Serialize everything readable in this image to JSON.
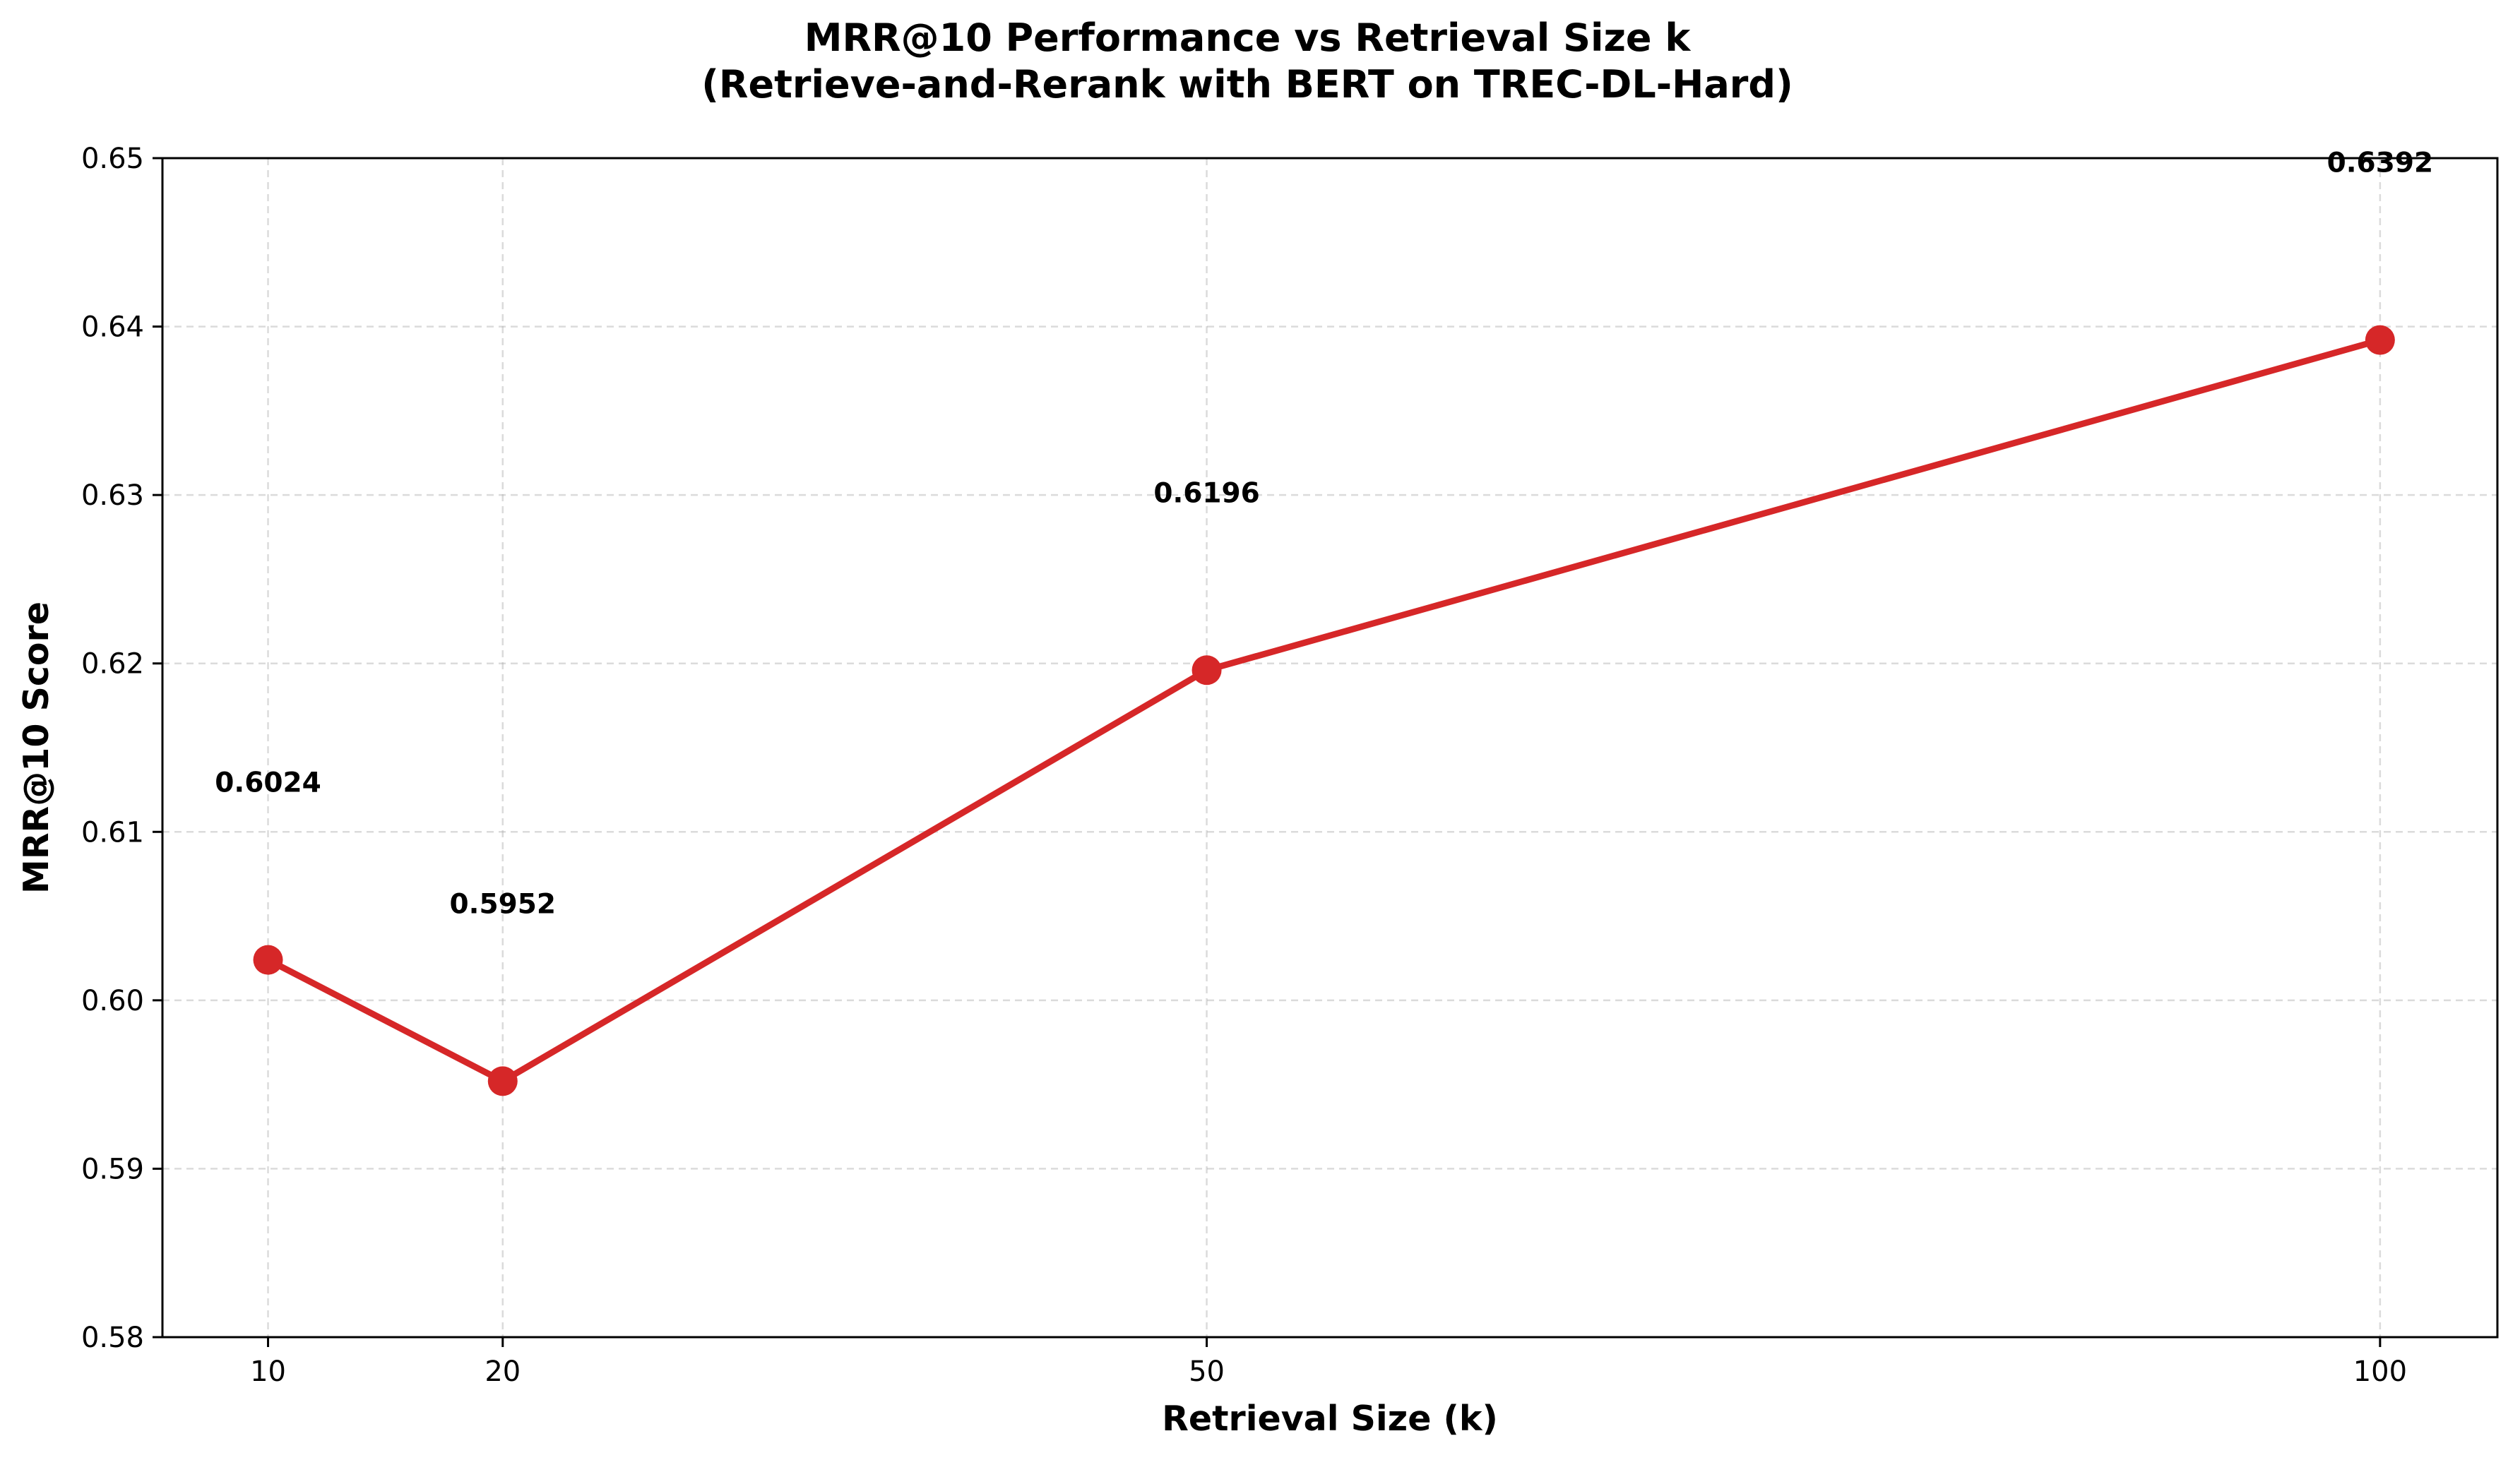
{
  "chart_data": {
    "type": "line",
    "title": "MRR@10 Performance vs Retrieval Size k",
    "subtitle": "(Retrieve-and-Rerank with BERT on TREC-DL-Hard)",
    "xlabel": "Retrieval Size (k)",
    "ylabel": "MRR@10 Score",
    "x": [
      10,
      20,
      50,
      100
    ],
    "x_tick_labels": [
      "10",
      "20",
      "50",
      "100"
    ],
    "xlim": [
      5.5,
      105
    ],
    "ylim": [
      0.58,
      0.65
    ],
    "y_ticks": [
      0.58,
      0.59,
      0.6,
      0.61,
      0.62,
      0.63,
      0.64,
      0.65
    ],
    "y_tick_labels": [
      "0.58",
      "0.59",
      "0.60",
      "0.61",
      "0.62",
      "0.63",
      "0.64",
      "0.65"
    ],
    "grid": true,
    "series": [
      {
        "values": [
          0.6024,
          0.5952,
          0.6196,
          0.6392
        ],
        "data_labels": [
          "0.6024",
          "0.5952",
          "0.6196",
          "0.6392"
        ],
        "color": "#d62728",
        "marker": "circle"
      }
    ]
  }
}
